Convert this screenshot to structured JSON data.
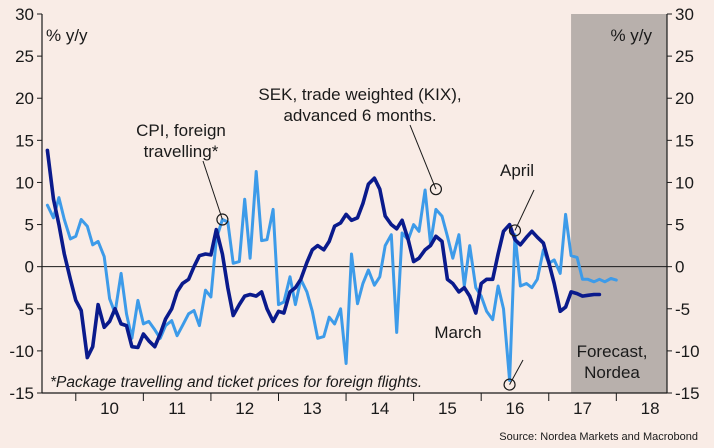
{
  "chart_data": {
    "type": "line",
    "ylabel_left": "% y/y",
    "ylabel_right": "% y/y",
    "ylim": [
      -15,
      30
    ],
    "yticks": [
      30,
      25,
      20,
      15,
      10,
      5,
      0,
      -5,
      -10,
      -15
    ],
    "xlim": [
      2009.5,
      2018.75
    ],
    "xticks": [
      {
        "label": "10",
        "x": 2010.5
      },
      {
        "label": "11",
        "x": 2011.5
      },
      {
        "label": "12",
        "x": 2012.5
      },
      {
        "label": "13",
        "x": 2013.5
      },
      {
        "label": "14",
        "x": 2014.5
      },
      {
        "label": "15",
        "x": 2015.5
      },
      {
        "label": "16",
        "x": 2016.5
      },
      {
        "label": "17",
        "x": 2017.5
      },
      {
        "label": "18",
        "x": 2018.5
      }
    ],
    "forecast_range": [
      2017.33,
      2018.75
    ],
    "series": [
      {
        "name": "CPI, foreign travelling",
        "color": "#3d9be9",
        "points": [
          [
            2009.58,
            7.3
          ],
          [
            2009.67,
            5.8
          ],
          [
            2009.75,
            8.2
          ],
          [
            2009.83,
            5.6
          ],
          [
            2009.92,
            3.3
          ],
          [
            2010.0,
            3.6
          ],
          [
            2010.08,
            5.6
          ],
          [
            2010.17,
            4.8
          ],
          [
            2010.25,
            2.6
          ],
          [
            2010.33,
            3.0
          ],
          [
            2010.42,
            1.2
          ],
          [
            2010.5,
            -3.8
          ],
          [
            2010.58,
            -5.5
          ],
          [
            2010.67,
            -0.8
          ],
          [
            2010.75,
            -5.6
          ],
          [
            2010.83,
            -8.5
          ],
          [
            2010.92,
            -4.0
          ],
          [
            2011.0,
            -6.8
          ],
          [
            2011.08,
            -6.5
          ],
          [
            2011.17,
            -7.5
          ],
          [
            2011.25,
            -8.5
          ],
          [
            2011.33,
            -7.0
          ],
          [
            2011.42,
            -6.4
          ],
          [
            2011.5,
            -8.2
          ],
          [
            2011.58,
            -7.0
          ],
          [
            2011.67,
            -5.6
          ],
          [
            2011.75,
            -5.2
          ],
          [
            2011.83,
            -7.0
          ],
          [
            2011.92,
            -2.8
          ],
          [
            2012.0,
            -3.6
          ],
          [
            2012.08,
            3.3
          ],
          [
            2012.17,
            5.6
          ],
          [
            2012.25,
            5.3
          ],
          [
            2012.33,
            0.4
          ],
          [
            2012.42,
            0.6
          ],
          [
            2012.5,
            8.0
          ],
          [
            2012.58,
            1.0
          ],
          [
            2012.67,
            11.3
          ],
          [
            2012.75,
            3.1
          ],
          [
            2012.83,
            3.2
          ],
          [
            2012.92,
            6.8
          ],
          [
            2013.0,
            -4.5
          ],
          [
            2013.08,
            -4.2
          ],
          [
            2013.17,
            -1.2
          ],
          [
            2013.25,
            -4.5
          ],
          [
            2013.33,
            -1.5
          ],
          [
            2013.42,
            -3.0
          ],
          [
            2013.5,
            -5.3
          ],
          [
            2013.58,
            -8.5
          ],
          [
            2013.67,
            -8.3
          ],
          [
            2013.75,
            -6.0
          ],
          [
            2013.83,
            -6.8
          ],
          [
            2013.92,
            -5.0
          ],
          [
            2014.0,
            -11.5
          ],
          [
            2014.08,
            1.5
          ],
          [
            2014.17,
            -4.4
          ],
          [
            2014.25,
            -2.0
          ],
          [
            2014.33,
            -0.4
          ],
          [
            2014.42,
            -2.2
          ],
          [
            2014.5,
            -1.2
          ],
          [
            2014.58,
            2.5
          ],
          [
            2014.67,
            3.8
          ],
          [
            2014.75,
            -7.8
          ],
          [
            2014.83,
            4.0
          ],
          [
            2014.92,
            3.2
          ],
          [
            2015.0,
            5.0
          ],
          [
            2015.08,
            4.2
          ],
          [
            2015.17,
            9.1
          ],
          [
            2015.25,
            2.7
          ],
          [
            2015.33,
            6.8
          ],
          [
            2015.42,
            6.0
          ],
          [
            2015.5,
            3.6
          ],
          [
            2015.58,
            1.0
          ],
          [
            2015.67,
            3.8
          ],
          [
            2015.75,
            -2.3
          ],
          [
            2015.83,
            2.5
          ],
          [
            2015.92,
            -2.5
          ],
          [
            2016.0,
            -3.5
          ],
          [
            2016.08,
            -5.3
          ],
          [
            2016.17,
            -6.3
          ],
          [
            2016.25,
            -2.3
          ],
          [
            2016.33,
            -5.0
          ],
          [
            2016.42,
            -13.5
          ],
          [
            2016.5,
            3.8
          ],
          [
            2016.58,
            -2.3
          ],
          [
            2016.67,
            -2.0
          ],
          [
            2016.75,
            -2.5
          ],
          [
            2016.83,
            -1.5
          ],
          [
            2016.92,
            2.0
          ],
          [
            2017.0,
            0.4
          ],
          [
            2017.08,
            0.8
          ],
          [
            2017.17,
            -0.8
          ],
          [
            2017.25,
            6.2
          ],
          [
            2017.33,
            1.3
          ],
          [
            2017.42,
            1.1
          ],
          [
            2017.5,
            -1.5
          ],
          [
            2017.58,
            -1.5
          ],
          [
            2017.67,
            -1.8
          ],
          [
            2017.75,
            -1.5
          ],
          [
            2017.83,
            -1.8
          ],
          [
            2017.92,
            -1.4
          ],
          [
            2018.0,
            -1.6
          ]
        ]
      },
      {
        "name": "SEK, trade weighted (KIX), advanced 6 months.",
        "color": "#0a1a8c",
        "points": [
          [
            2009.58,
            13.8
          ],
          [
            2009.67,
            8.0
          ],
          [
            2009.75,
            5.0
          ],
          [
            2009.83,
            1.5
          ],
          [
            2009.92,
            -1.5
          ],
          [
            2010.0,
            -4.0
          ],
          [
            2010.08,
            -5.2
          ],
          [
            2010.17,
            -10.8
          ],
          [
            2010.25,
            -9.5
          ],
          [
            2010.33,
            -4.5
          ],
          [
            2010.42,
            -7.2
          ],
          [
            2010.5,
            -6.5
          ],
          [
            2010.58,
            -5.0
          ],
          [
            2010.67,
            -6.8
          ],
          [
            2010.75,
            -7.0
          ],
          [
            2010.83,
            -9.5
          ],
          [
            2010.92,
            -9.6
          ],
          [
            2011.0,
            -8.0
          ],
          [
            2011.08,
            -8.8
          ],
          [
            2011.17,
            -9.5
          ],
          [
            2011.25,
            -8.0
          ],
          [
            2011.33,
            -6.2
          ],
          [
            2011.42,
            -5.0
          ],
          [
            2011.5,
            -3.0
          ],
          [
            2011.58,
            -2.0
          ],
          [
            2011.67,
            -1.5
          ],
          [
            2011.75,
            0.0
          ],
          [
            2011.83,
            1.3
          ],
          [
            2011.92,
            1.5
          ],
          [
            2012.0,
            1.4
          ],
          [
            2012.08,
            4.4
          ],
          [
            2012.17,
            1.5
          ],
          [
            2012.25,
            -2.5
          ],
          [
            2012.33,
            -5.8
          ],
          [
            2012.42,
            -4.5
          ],
          [
            2012.5,
            -3.5
          ],
          [
            2012.58,
            -3.3
          ],
          [
            2012.67,
            -3.5
          ],
          [
            2012.75,
            -3.0
          ],
          [
            2012.83,
            -5.0
          ],
          [
            2012.92,
            -6.5
          ],
          [
            2013.0,
            -5.3
          ],
          [
            2013.08,
            -5.5
          ],
          [
            2013.17,
            -3.0
          ],
          [
            2013.25,
            -2.5
          ],
          [
            2013.33,
            -1.5
          ],
          [
            2013.42,
            0.5
          ],
          [
            2013.5,
            2.0
          ],
          [
            2013.58,
            2.5
          ],
          [
            2013.67,
            2.0
          ],
          [
            2013.75,
            3.0
          ],
          [
            2013.83,
            4.8
          ],
          [
            2013.92,
            5.2
          ],
          [
            2014.0,
            6.2
          ],
          [
            2014.08,
            5.5
          ],
          [
            2014.17,
            5.8
          ],
          [
            2014.25,
            7.5
          ],
          [
            2014.33,
            9.8
          ],
          [
            2014.42,
            10.5
          ],
          [
            2014.5,
            9.2
          ],
          [
            2014.58,
            6.0
          ],
          [
            2014.67,
            5.0
          ],
          [
            2014.75,
            4.5
          ],
          [
            2014.83,
            5.5
          ],
          [
            2014.92,
            3.2
          ],
          [
            2015.0,
            0.6
          ],
          [
            2015.08,
            1.0
          ],
          [
            2015.17,
            2.0
          ],
          [
            2015.25,
            2.5
          ],
          [
            2015.33,
            3.6
          ],
          [
            2015.42,
            3.0
          ],
          [
            2015.5,
            -1.5
          ],
          [
            2015.58,
            -2.0
          ],
          [
            2015.67,
            -3.0
          ],
          [
            2015.75,
            -2.5
          ],
          [
            2015.83,
            -3.5
          ],
          [
            2015.92,
            -5.5
          ],
          [
            2016.0,
            -2.0
          ],
          [
            2016.08,
            -1.5
          ],
          [
            2016.17,
            -1.5
          ],
          [
            2016.25,
            1.5
          ],
          [
            2016.33,
            4.2
          ],
          [
            2016.42,
            5.0
          ],
          [
            2016.5,
            3.2
          ],
          [
            2016.58,
            2.6
          ],
          [
            2016.67,
            3.5
          ],
          [
            2016.75,
            4.2
          ],
          [
            2016.83,
            3.5
          ],
          [
            2016.92,
            2.8
          ],
          [
            2017.0,
            0.5
          ],
          [
            2017.08,
            -2.0
          ],
          [
            2017.17,
            -5.3
          ],
          [
            2017.25,
            -4.8
          ],
          [
            2017.33,
            -3.0
          ],
          [
            2017.42,
            -3.2
          ],
          [
            2017.5,
            -3.5
          ],
          [
            2017.58,
            -3.4
          ],
          [
            2017.67,
            -3.3
          ],
          [
            2017.75,
            -3.3
          ]
        ]
      }
    ],
    "annotations": [
      {
        "lines": [
          "CPI, foreign",
          "travelling*"
        ],
        "x": 2012.17,
        "y": 5.6
      },
      {
        "lines": [
          "SEK, trade weighted (KIX),",
          "advanced 6 months."
        ],
        "x": 2015.33,
        "y": 9.2
      },
      {
        "lines": [
          "April"
        ],
        "x": 2016.5,
        "y": 4.3
      },
      {
        "lines": [
          "March"
        ],
        "x": 2016.42,
        "y": -14.0
      }
    ],
    "forecast_label": [
      "Forecast,",
      "Nordea"
    ],
    "footnote": "*Package travelling and ticket prices for foreign flights.",
    "source": "Source: Nordea Markets and Macrobond"
  }
}
